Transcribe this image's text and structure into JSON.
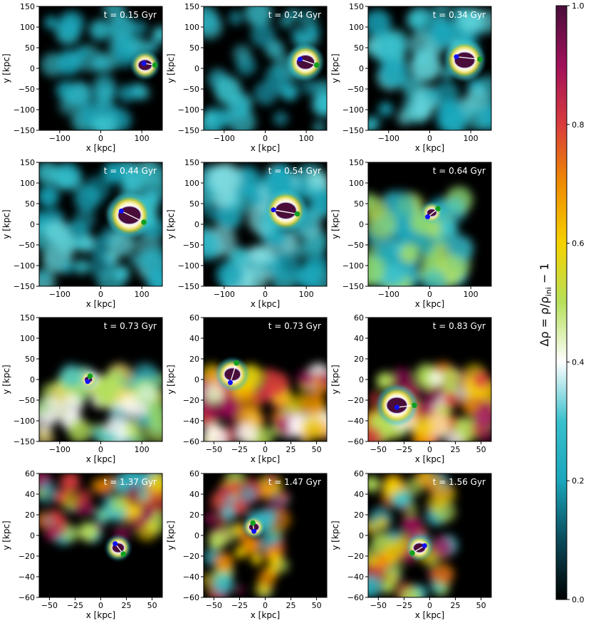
{
  "chart_data": {
    "type": "heatmap",
    "colorbar": {
      "label": "Δρ = ρ/ρ_ini − 1",
      "label_parts": {
        "main": "Δρ = ρ/ρ",
        "sub": "ini",
        "tail": " − 1"
      },
      "range": [
        0.0,
        1.0
      ],
      "ticks": [
        "0.0",
        "0.2",
        "0.4",
        "0.6",
        "0.8",
        "1.0"
      ],
      "colormap": [
        "#000000",
        "#0a4a5a",
        "#1aa6bb",
        "#38c0cc",
        "#ffffff",
        "#b6e05a",
        "#f5d200",
        "#ef8c00",
        "#d93c3c",
        "#a0105a",
        "#4a0d3a"
      ]
    },
    "panels": [
      {
        "time": "t = 0.15 Gyr",
        "xlabel": "x [kpc]",
        "ylabel": "y [kpc]",
        "xlim": [
          -150,
          150
        ],
        "ylim": [
          -150,
          150
        ],
        "xticks": [
          -100,
          0,
          100
        ],
        "yticks": [
          -150,
          -100,
          -50,
          0,
          50,
          100,
          150
        ],
        "blob": {
          "x": 108,
          "y": 8,
          "r": 17
        },
        "start": {
          "x": 105,
          "y": 12
        },
        "end": {
          "x": 132,
          "y": 8
        },
        "field": "cyan-sparse"
      },
      {
        "time": "t = 0.24 Gyr",
        "xlabel": "x [kpc]",
        "ylabel": "y [kpc]",
        "xlim": [
          -150,
          150
        ],
        "ylim": [
          -150,
          150
        ],
        "xticks": [
          -100,
          0,
          100
        ],
        "yticks": [
          -150,
          -100,
          -50,
          0,
          50,
          100,
          150
        ],
        "blob": {
          "x": 98,
          "y": 15,
          "r": 22
        },
        "start": {
          "x": 85,
          "y": 22
        },
        "end": {
          "x": 125,
          "y": 8
        },
        "field": "cyan-sparse"
      },
      {
        "time": "t = 0.34 Gyr",
        "xlabel": "x [kpc]",
        "ylabel": "y [kpc]",
        "xlim": [
          -150,
          150
        ],
        "ylim": [
          -150,
          150
        ],
        "xticks": [
          -100,
          0,
          100
        ],
        "yticks": [
          -150,
          -100,
          -50,
          0,
          50,
          100,
          150
        ],
        "blob": {
          "x": 85,
          "y": 20,
          "r": 25
        },
        "start": {
          "x": 65,
          "y": 28
        },
        "end": {
          "x": 122,
          "y": 22
        },
        "field": "cyan-medium"
      },
      {
        "time": "t = 0.44 Gyr",
        "xlabel": "x [kpc]",
        "ylabel": "y [kpc]",
        "xlim": [
          -150,
          150
        ],
        "ylim": [
          -150,
          150
        ],
        "xticks": [
          -100,
          0,
          100
        ],
        "yticks": [
          -150,
          -100,
          -50,
          0,
          50,
          100,
          150
        ],
        "blob": {
          "x": 70,
          "y": 22,
          "r": 28
        },
        "start": {
          "x": 50,
          "y": 32
        },
        "end": {
          "x": 105,
          "y": 5
        },
        "field": "cyan-medium"
      },
      {
        "time": "t = 0.54 Gyr",
        "xlabel": "x [kpc]",
        "ylabel": "y [kpc]",
        "xlim": [
          -150,
          150
        ],
        "ylim": [
          -150,
          150
        ],
        "xticks": [
          -100,
          0,
          100
        ],
        "yticks": [
          -150,
          -100,
          -50,
          0,
          50,
          100,
          150
        ],
        "blob": {
          "x": 50,
          "y": 33,
          "r": 26
        },
        "start": {
          "x": 20,
          "y": 35
        },
        "end": {
          "x": 78,
          "y": 25
        },
        "field": "cyan-dense"
      },
      {
        "time": "t = 0.64 Gyr",
        "xlabel": "x [kpc]",
        "ylabel": "y [kpc]",
        "xlim": [
          -150,
          150
        ],
        "ylim": [
          -150,
          150
        ],
        "xticks": [
          -100,
          0,
          100
        ],
        "yticks": [
          -150,
          -100,
          -50,
          0,
          50,
          100,
          150
        ],
        "blob": {
          "x": 5,
          "y": 28,
          "r": 12
        },
        "start": {
          "x": -5,
          "y": 18
        },
        "end": {
          "x": 20,
          "y": 38
        },
        "field": "cyan-green"
      },
      {
        "time": "t = 0.73 Gyr",
        "xlabel": "x [kpc]",
        "ylabel": "y [kpc]",
        "xlim": [
          -150,
          150
        ],
        "ylim": [
          -150,
          150
        ],
        "xticks": [
          -100,
          0,
          100
        ],
        "yticks": [
          -150,
          -100,
          -50,
          0,
          50,
          100,
          150
        ],
        "blob": {
          "x": -30,
          "y": 0,
          "r": 10
        },
        "start": {
          "x": -32,
          "y": -5
        },
        "end": {
          "x": -26,
          "y": 8
        },
        "field": "green-yellow"
      },
      {
        "time": "t = 0.73 Gyr",
        "xlabel": "x [kpc]",
        "ylabel": "y [kpc]",
        "xlim": [
          -60,
          60
        ],
        "ylim": [
          -60,
          60
        ],
        "xticks": [
          -50,
          -25,
          0,
          25,
          50
        ],
        "yticks": [
          -60,
          -40,
          -20,
          0,
          20,
          40,
          60
        ],
        "blob": {
          "x": -32,
          "y": 5,
          "r": 8
        },
        "start": {
          "x": -34,
          "y": -3
        },
        "end": {
          "x": -28,
          "y": 16
        },
        "field": "hot-lower"
      },
      {
        "time": "t = 0.83 Gyr",
        "xlabel": "x [kpc]",
        "ylabel": "y [kpc]",
        "xlim": [
          -60,
          60
        ],
        "ylim": [
          -60,
          60
        ],
        "xticks": [
          -50,
          -25,
          0,
          25,
          50
        ],
        "yticks": [
          -60,
          -40,
          -20,
          0,
          20,
          40,
          60
        ],
        "blob": {
          "x": -32,
          "y": -25,
          "r": 10
        },
        "start": {
          "x": -32,
          "y": -27
        },
        "end": {
          "x": -15,
          "y": -25
        },
        "field": "hot-lower"
      },
      {
        "time": "t = 1.37 Gyr",
        "xlabel": "x [kpc]",
        "ylabel": "y [kpc]",
        "xlim": [
          -60,
          60
        ],
        "ylim": [
          -60,
          60
        ],
        "xticks": [
          -50,
          -25,
          0,
          25,
          50
        ],
        "yticks": [
          -60,
          -40,
          -20,
          0,
          20,
          40,
          60
        ],
        "blob": {
          "x": 17,
          "y": -12,
          "r": 6
        },
        "start": {
          "x": 14,
          "y": -8
        },
        "end": {
          "x": 22,
          "y": -18
        },
        "field": "hot-upper"
      },
      {
        "time": "t = 1.47 Gyr",
        "xlabel": "x [kpc]",
        "ylabel": "y [kpc]",
        "xlim": [
          -60,
          60
        ],
        "ylim": [
          -60,
          60
        ],
        "xticks": [
          -50,
          -25,
          0,
          25,
          50
        ],
        "yticks": [
          -60,
          -40,
          -20,
          0,
          20,
          40,
          60
        ],
        "blob": {
          "x": -11,
          "y": 8,
          "r": 5
        },
        "start": {
          "x": -11,
          "y": 4
        },
        "end": {
          "x": -12,
          "y": 12
        },
        "field": "hot-left"
      },
      {
        "time": "t = 1.56 Gyr",
        "xlabel": "x [kpc]",
        "ylabel": "y [kpc]",
        "xlim": [
          -60,
          60
        ],
        "ylim": [
          -60,
          60
        ],
        "xticks": [
          -50,
          -25,
          0,
          25,
          50
        ],
        "yticks": [
          -60,
          -40,
          -20,
          0,
          20,
          40,
          60
        ],
        "blob": {
          "x": -10,
          "y": -12,
          "r": 6
        },
        "start": {
          "x": -5,
          "y": -10
        },
        "end": {
          "x": -17,
          "y": -17
        },
        "field": "hot-left"
      }
    ]
  }
}
